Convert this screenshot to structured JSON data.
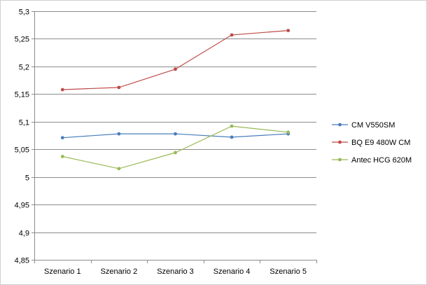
{
  "chart_data": {
    "type": "line",
    "title": "",
    "xlabel": "",
    "ylabel": "",
    "categories": [
      "Szenario 1",
      "Szenario 2",
      "Szenario 3",
      "Szenario 4",
      "Szenario 5"
    ],
    "y_tick_labels": [
      "4,85",
      "4,9",
      "4,95",
      "5",
      "5,05",
      "5,1",
      "5,15",
      "5,2",
      "5,25",
      "5,3"
    ],
    "ylim": [
      4.85,
      5.3
    ],
    "y_step": 0.05,
    "grid": "horizontal",
    "legend_position": "right",
    "series": [
      {
        "name": "CM V550SM",
        "color": "#4a7ebb",
        "values": [
          5.071,
          5.078,
          5.078,
          5.072,
          5.078
        ]
      },
      {
        "name": "BQ E9  480W CM",
        "color": "#be4b48",
        "values": [
          5.158,
          5.162,
          5.195,
          5.257,
          5.265
        ]
      },
      {
        "name": "Antec HCG 620M",
        "color": "#98b954",
        "values": [
          5.037,
          5.015,
          5.044,
          5.092,
          5.081
        ]
      }
    ]
  }
}
